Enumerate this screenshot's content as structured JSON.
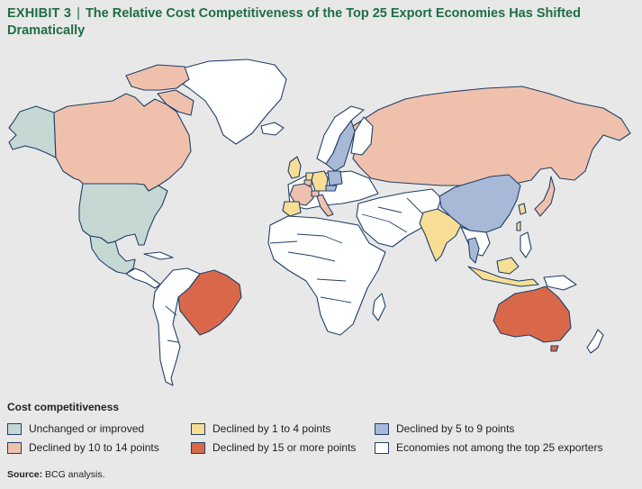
{
  "header": {
    "exhibit": "EXHIBIT 3",
    "separator": "|",
    "title": "The Relative Cost Competitiveness of the Top 25 Export Economies Has Shifted Dramatically"
  },
  "legend": {
    "title": "Cost competitiveness",
    "items": [
      {
        "key": "unchanged",
        "label": "Unchanged or improved",
        "color": "#c6d8d3"
      },
      {
        "key": "decl_1_4",
        "label": "Declined by 1 to 4 points",
        "color": "#f8de94"
      },
      {
        "key": "decl_5_9",
        "label": "Declined by 5 to 9 points",
        "color": "#a8b9d8"
      },
      {
        "key": "decl_10_14",
        "label": "Declined by 10 to 14 points",
        "color": "#efc1ad"
      },
      {
        "key": "decl_15_plus",
        "label": "Declined by 15 or more points",
        "color": "#d9684a"
      },
      {
        "key": "not_top25",
        "label": "Economies not among the top 25 exporters",
        "color": "#ffffff"
      }
    ]
  },
  "regions": [
    {
      "name": "United States",
      "category": "unchanged"
    },
    {
      "name": "Mexico",
      "category": "unchanged"
    },
    {
      "name": "Canada",
      "category": "decl_10_14"
    },
    {
      "name": "Brazil",
      "category": "decl_15_plus"
    },
    {
      "name": "Australia",
      "category": "decl_15_plus"
    },
    {
      "name": "Russia",
      "category": "decl_10_14"
    },
    {
      "name": "China",
      "category": "decl_5_9"
    },
    {
      "name": "India",
      "category": "decl_1_4"
    },
    {
      "name": "Japan",
      "category": "decl_10_14"
    },
    {
      "name": "South Korea",
      "category": "decl_1_4"
    },
    {
      "name": "Taiwan",
      "category": "decl_1_4"
    },
    {
      "name": "Thailand",
      "category": "decl_5_9"
    },
    {
      "name": "Indonesia",
      "category": "decl_1_4"
    },
    {
      "name": "United Kingdom",
      "category": "decl_1_4"
    },
    {
      "name": "Spain",
      "category": "decl_1_4"
    },
    {
      "name": "Netherlands",
      "category": "decl_1_4"
    },
    {
      "name": "Germany",
      "category": "decl_1_4"
    },
    {
      "name": "France",
      "category": "decl_10_14"
    },
    {
      "name": "Italy",
      "category": "decl_10_14"
    },
    {
      "name": "Belgium",
      "category": "decl_10_14"
    },
    {
      "name": "Switzerland",
      "category": "decl_10_14"
    },
    {
      "name": "Sweden",
      "category": "decl_5_9"
    },
    {
      "name": "Poland",
      "category": "decl_5_9"
    },
    {
      "name": "Czech Republic",
      "category": "decl_5_9"
    }
  ],
  "source": {
    "label": "Source:",
    "text": "BCG analysis."
  }
}
